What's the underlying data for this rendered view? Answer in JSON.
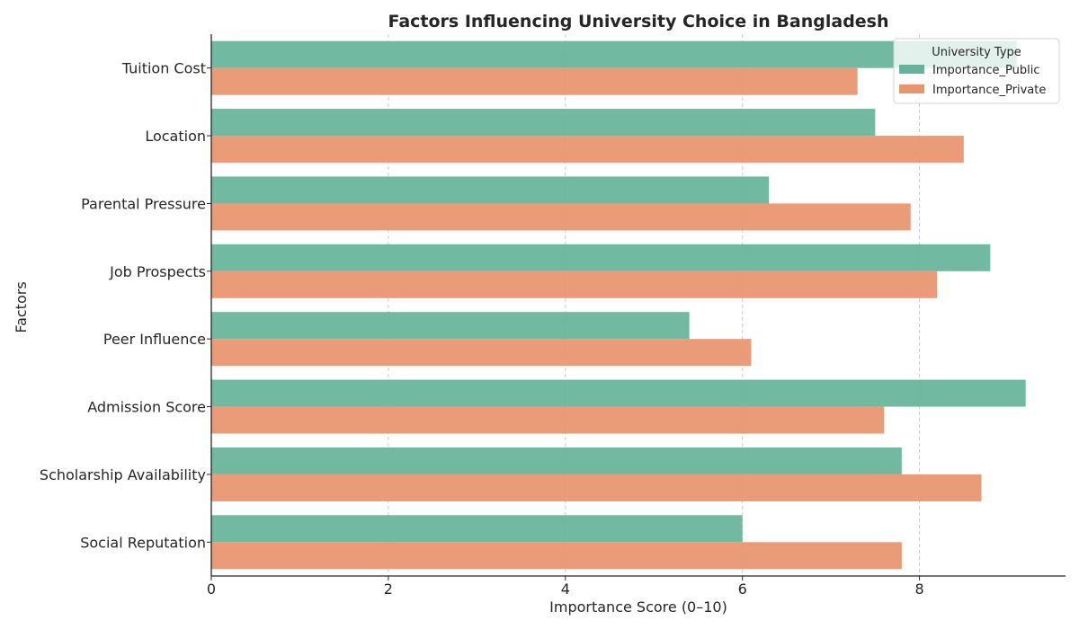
{
  "chart_data": {
    "type": "bar",
    "orientation": "horizontal",
    "title": "Factors Influencing University Choice in Bangladesh",
    "xlabel": "Importance Score (0–10)",
    "ylabel": "Factors",
    "xlim": [
      0,
      9.65
    ],
    "x_ticks": [
      0,
      2,
      4,
      6,
      8
    ],
    "grid": "vertical dashed",
    "categories": [
      "Tuition Cost",
      "Location",
      "Parental Pressure",
      "Job Prospects",
      "Peer Influence",
      "Admission Score",
      "Scholarship Availability",
      "Social Reputation"
    ],
    "series": [
      {
        "name": "Importance_Public",
        "color": "#66b39a",
        "values": [
          9.1,
          7.5,
          6.3,
          8.8,
          5.4,
          9.2,
          7.8,
          6.0
        ]
      },
      {
        "name": "Importance_Private",
        "color": "#e8946c",
        "values": [
          7.3,
          8.5,
          7.9,
          8.2,
          6.1,
          7.6,
          8.7,
          7.8
        ]
      }
    ],
    "legend": {
      "title": "University Type",
      "placement": "top-right"
    }
  }
}
